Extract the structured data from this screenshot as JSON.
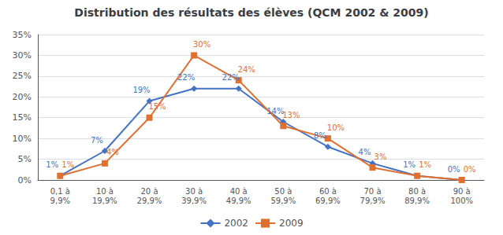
{
  "chart_data": {
    "type": "line",
    "title": "Distribution des résultats des élèves (QCM 2002 & 2009)",
    "categories": [
      "0,1 à\n9,9%",
      "10 à\n19,9%",
      "20 à\n29,9%",
      "30 à\n39,9%",
      "40 à\n49,9%",
      "50 à\n59,9%",
      "60 à\n69,9%",
      "70 à\n79,9%",
      "80 à\n89,9%",
      "90 à\n100%"
    ],
    "series": [
      {
        "name": "2002",
        "color": "#4472C4",
        "marker": "diamond",
        "values": [
          1,
          7,
          19,
          22,
          22,
          14,
          8,
          4,
          1,
          0
        ],
        "value_labels": [
          "1%",
          "7%",
          "19%",
          "22%",
          "22%",
          "14%",
          "8%",
          "4%",
          "1%",
          "0%"
        ]
      },
      {
        "name": "2009",
        "color": "#E07030",
        "marker": "square",
        "values": [
          1,
          4,
          15,
          30,
          24,
          13,
          10,
          3,
          1,
          0
        ],
        "value_labels": [
          "1%",
          "4%",
          "15%",
          "30%",
          "24%",
          "13%",
          "10%",
          "3%",
          "1%",
          "0%"
        ]
      }
    ],
    "ylim": [
      0,
      35
    ],
    "yticks": [
      {
        "value": 0,
        "label": "0%"
      },
      {
        "value": 5,
        "label": "5%"
      },
      {
        "value": 10,
        "label": "10%"
      },
      {
        "value": 15,
        "label": "15%"
      },
      {
        "value": 20,
        "label": "20%"
      },
      {
        "value": 25,
        "label": "25%"
      },
      {
        "value": 30,
        "label": "30%"
      },
      {
        "value": 35,
        "label": "35%"
      }
    ],
    "grid": true,
    "legend": "bottom",
    "data_labels": true
  }
}
